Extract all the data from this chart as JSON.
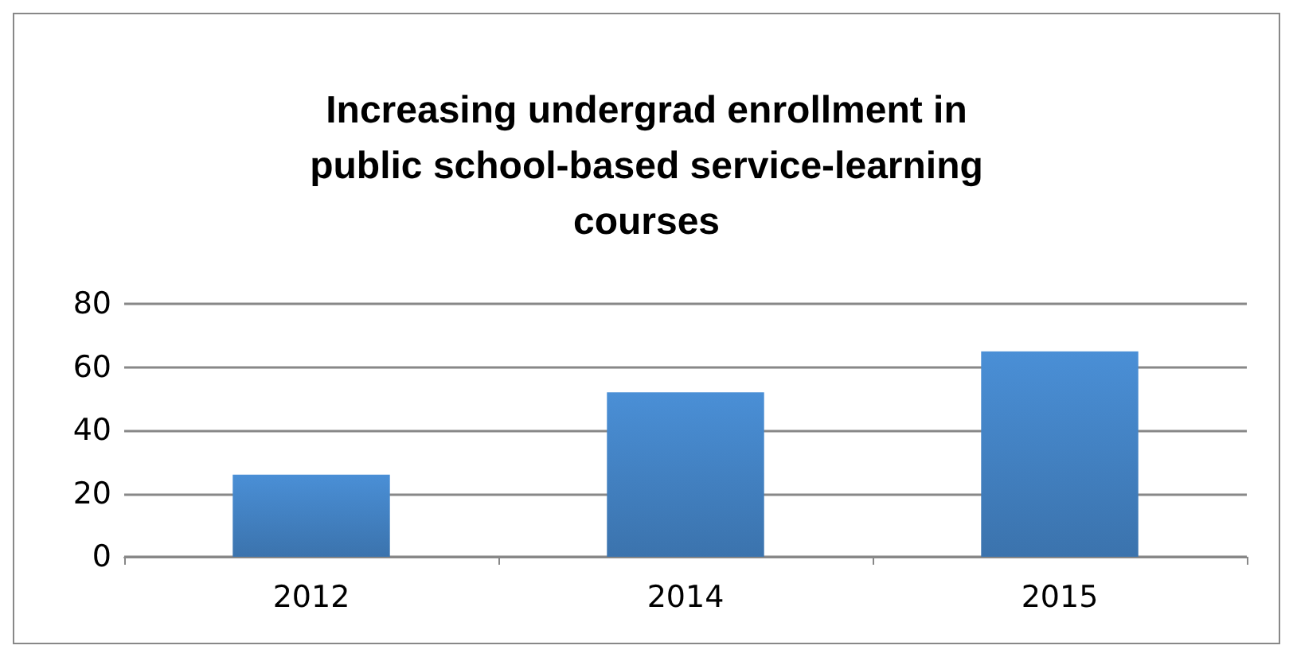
{
  "chart_data": {
    "type": "bar",
    "title": "Increasing undergrad enrollment in\npublic school-based service-learning\ncourses",
    "categories": [
      "2012",
      "2014",
      "2015"
    ],
    "values": [
      26,
      52,
      65
    ],
    "color": "#4a8fd6",
    "ylim": [
      0,
      80
    ],
    "yticks": [
      0,
      20,
      40,
      60,
      80
    ],
    "grid": "y"
  }
}
